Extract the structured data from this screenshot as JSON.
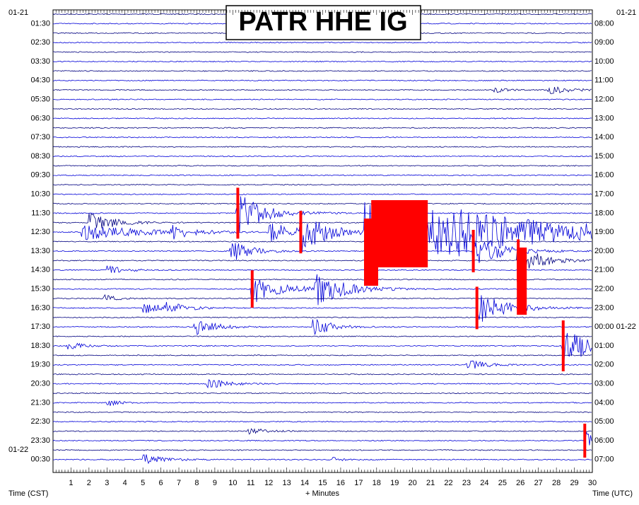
{
  "header": {
    "title": "PATR HHE IG"
  },
  "dates": {
    "top_left": "01-21",
    "top_right": "01-21",
    "left_lower": "01-22"
  },
  "left_labels": [
    "01:30",
    "02:30",
    "03:30",
    "04:30",
    "05:30",
    "06:30",
    "07:30",
    "08:30",
    "09:30",
    "10:30",
    "11:30",
    "12:30",
    "13:30",
    "14:30",
    "15:30",
    "16:30",
    "17:30",
    "18:30",
    "19:30",
    "20:30",
    "21:30",
    "22:30",
    "23:30",
    "00:30"
  ],
  "right_labels": [
    "08:00",
    "09:00",
    "10:00",
    "11:00",
    "12:00",
    "13:00",
    "14:00",
    "15:00",
    "16:00",
    "17:00",
    "18:00",
    "19:00",
    "20:00",
    "21:00",
    "22:00",
    "23:00",
    "00:00 01-22",
    "01:00",
    "02:00",
    "03:00",
    "04:00",
    "05:00",
    "06:00",
    "07:00"
  ],
  "minute_labels": [
    "1",
    "2",
    "3",
    "4",
    "5",
    "6",
    "7",
    "8",
    "9",
    "10",
    "11",
    "12",
    "13",
    "14",
    "15",
    "16",
    "17",
    "18",
    "19",
    "20",
    "21",
    "22",
    "23",
    "24",
    "25",
    "26",
    "27",
    "28",
    "29",
    "30"
  ],
  "footer": {
    "left": "Time (CST)",
    "center": "+ Minutes",
    "right": "Time (UTC)"
  }
}
